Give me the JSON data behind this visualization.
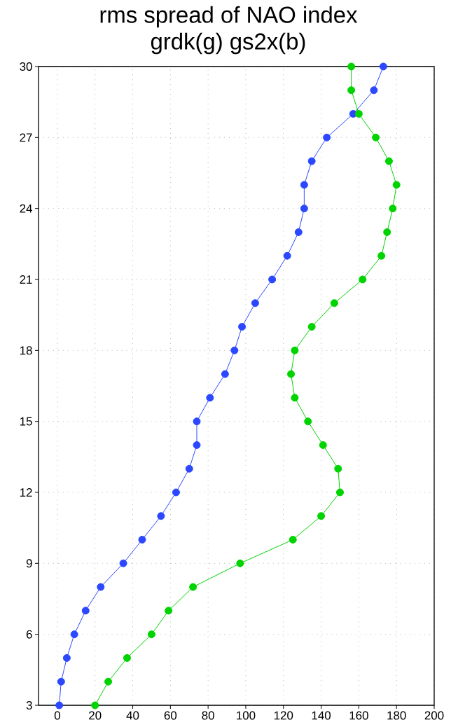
{
  "chart_data": {
    "type": "line",
    "title": "rms spread of NAO index",
    "subtitle": "grdk(g)  gs2x(b)",
    "series": [
      {
        "color": "#2b48ff",
        "x": [
          1,
          2,
          5,
          9,
          15,
          23,
          35,
          45,
          55,
          63,
          70,
          74,
          74,
          81,
          89,
          94,
          98,
          105,
          114,
          122,
          128,
          131,
          131,
          135,
          143,
          157,
          168,
          173
        ],
        "values": [
          3,
          4,
          5,
          6,
          7,
          8,
          9,
          10,
          11,
          12,
          13,
          14,
          15,
          16,
          17,
          18,
          19,
          20,
          21,
          22,
          23,
          24,
          25,
          26,
          27,
          28,
          29,
          30
        ]
      },
      {
        "color": "#00d400",
        "x": [
          20,
          27,
          37,
          50,
          59,
          72,
          97,
          125,
          140,
          150,
          149,
          141,
          133,
          126,
          124,
          126,
          135,
          147,
          162,
          172,
          175,
          178,
          180,
          176,
          169,
          160,
          156,
          156
        ],
        "values": [
          3,
          4,
          5,
          6,
          7,
          8,
          9,
          10,
          11,
          12,
          13,
          14,
          15,
          16,
          17,
          18,
          19,
          20,
          21,
          22,
          23,
          24,
          25,
          26,
          27,
          28,
          29,
          30
        ]
      }
    ],
    "xlim": [
      -10,
      200
    ],
    "xticks": [
      0,
      20,
      40,
      60,
      80,
      100,
      120,
      140,
      160,
      180,
      200
    ],
    "ylim": [
      3,
      30
    ],
    "yticks": [
      3,
      6,
      9,
      12,
      15,
      18,
      21,
      24,
      27,
      30
    ],
    "grid": true,
    "marker": "circle",
    "line_style": "solid"
  }
}
